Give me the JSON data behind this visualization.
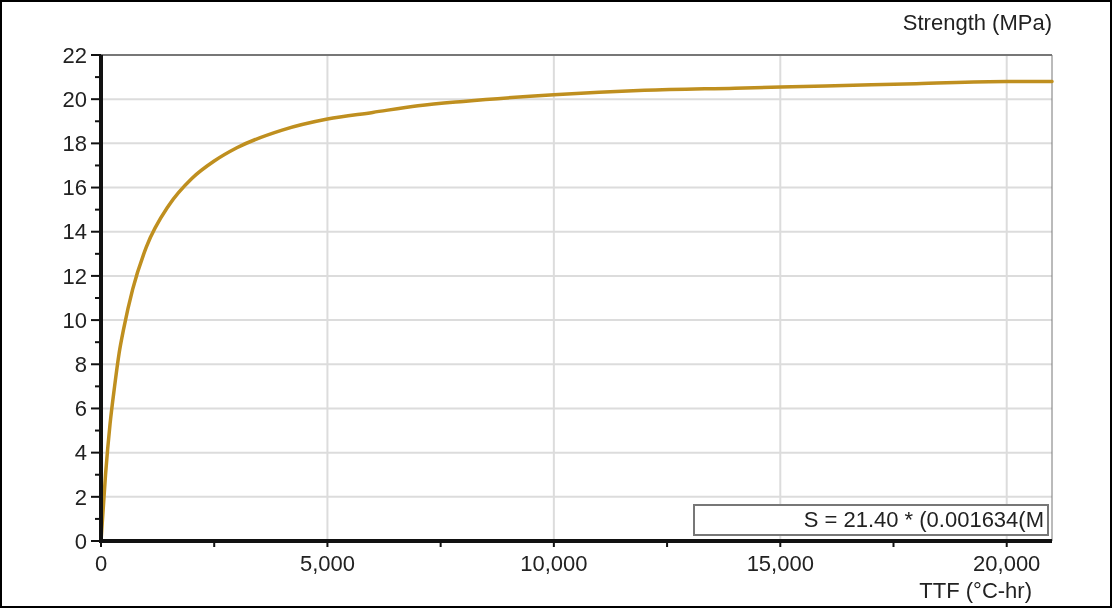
{
  "chart_data": {
    "type": "line",
    "ylabel": "Strength (MPa)",
    "xlabel": "TTF (°C-hr)",
    "annotations": [
      "S = 21.40 * (0.001634(M"
    ],
    "x": [
      0,
      100,
      200,
      300,
      400,
      500,
      700,
      1000,
      1500,
      2000,
      2500,
      3000,
      4000,
      5000,
      6000,
      7000,
      8000,
      10000,
      12000,
      14000,
      16000,
      18000,
      20000,
      21000
    ],
    "series": [
      {
        "color": "#bf8f1f",
        "values": [
          0,
          3.0,
          5.3,
          7.0,
          8.5,
          9.6,
          11.4,
          13.3,
          15.2,
          16.4,
          17.2,
          17.8,
          18.6,
          19.1,
          19.4,
          19.7,
          19.9,
          20.2,
          20.4,
          20.5,
          20.6,
          20.7,
          20.8,
          20.8
        ]
      }
    ],
    "xlim": [
      0,
      21000
    ],
    "ylim": [
      0,
      22
    ],
    "xticks": [
      {
        "value": 0,
        "label": "0"
      },
      {
        "value": 2500,
        "label": null
      },
      {
        "value": 5000,
        "label": "5,000"
      },
      {
        "value": 7500,
        "label": null
      },
      {
        "value": 10000,
        "label": "10,000"
      },
      {
        "value": 12500,
        "label": null
      },
      {
        "value": 15000,
        "label": "15,000"
      },
      {
        "value": 17500,
        "label": null
      },
      {
        "value": 20000,
        "label": "20,000"
      }
    ],
    "yticks": [
      0,
      {
        "value": 1,
        "label": null
      },
      2,
      {
        "value": 3,
        "label": null
      },
      4,
      {
        "value": 5,
        "label": null
      },
      6,
      {
        "value": 7,
        "label": null
      },
      8,
      {
        "value": 9,
        "label": null
      },
      10,
      {
        "value": 11,
        "label": null
      },
      12,
      {
        "value": 13,
        "label": null
      },
      14,
      {
        "value": 15,
        "label": null
      },
      16,
      {
        "value": 17,
        "label": null
      },
      18,
      {
        "value": 19,
        "label": null
      },
      20,
      {
        "value": 21,
        "label": null
      },
      22
    ],
    "grid": true,
    "marker": "none",
    "line_style": "solid"
  }
}
